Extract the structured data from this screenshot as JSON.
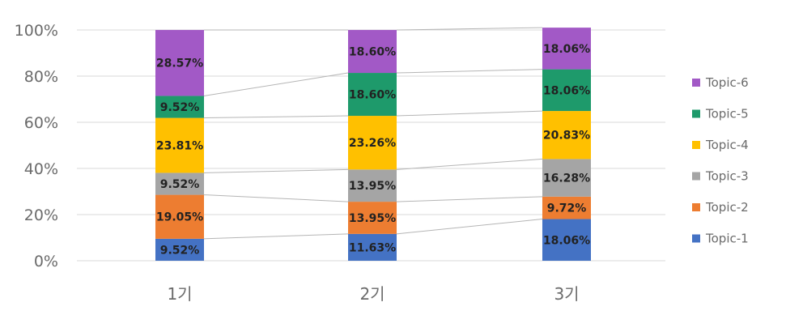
{
  "chart_data": {
    "type": "bar",
    "stacked": true,
    "percent_stacked": true,
    "categories": [
      "1기",
      "2기",
      "3기"
    ],
    "y_ticks": [
      "0%",
      "20%",
      "40%",
      "60%",
      "80%",
      "100%"
    ],
    "ylim": [
      0,
      100
    ],
    "grid": true,
    "legend_position": "right",
    "series": [
      {
        "name": "Topic-1",
        "color": "#4472c4",
        "values": [
          9.52,
          11.63,
          18.06
        ],
        "labels": [
          "9.52%",
          "11.63%",
          "18.06%"
        ]
      },
      {
        "name": "Topic-2",
        "color": "#ed7d31",
        "values": [
          19.05,
          13.95,
          9.72
        ],
        "labels": [
          "19.05%",
          "13.95%",
          "9.72%"
        ]
      },
      {
        "name": "Topic-3",
        "color": "#a5a5a5",
        "values": [
          9.52,
          13.95,
          16.28
        ],
        "labels": [
          "9.52%",
          "13.95%",
          "16.28%"
        ]
      },
      {
        "name": "Topic-4",
        "color": "#ffc000",
        "values": [
          23.81,
          23.26,
          20.83
        ],
        "labels": [
          "23.81%",
          "23.26%",
          "20.83%"
        ]
      },
      {
        "name": "Topic-5",
        "color": "#1e9a6b",
        "values": [
          9.52,
          18.6,
          18.06
        ],
        "labels": [
          "9.52%",
          "18.60%",
          "18.06%"
        ]
      },
      {
        "name": "Topic-6",
        "color": "#a259c6",
        "values": [
          28.57,
          18.6,
          18.06
        ],
        "labels": [
          "28.57%",
          "18.60%",
          "18.06%"
        ]
      }
    ]
  }
}
